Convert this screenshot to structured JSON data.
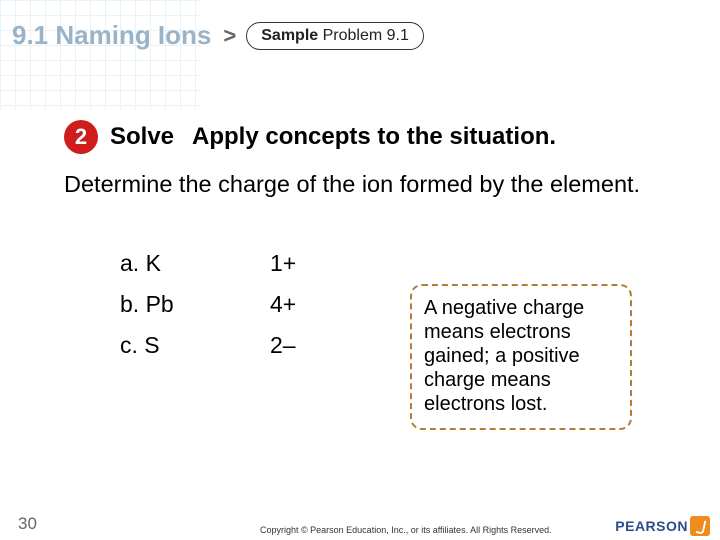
{
  "header": {
    "section_title": "9.1 Naming Ions",
    "chevron": ">",
    "sample_bold": "Sample",
    "sample_rest": " Problem 9.1"
  },
  "step": {
    "number": "2",
    "label": "Solve",
    "text": "Apply concepts to the situation."
  },
  "instruction": "Determine the charge of the ion formed by the element.",
  "answers": [
    {
      "el": "a. K",
      "ch": "1+"
    },
    {
      "el": "b. Pb",
      "ch": "4+"
    },
    {
      "el": "c. S",
      "ch": "2–"
    }
  ],
  "hint": "A negative charge means electrons gained; a positive charge means electrons lost.",
  "footer": {
    "page": "30",
    "copyright": "Copyright © Pearson Education, Inc., or its affiliates. All Rights Reserved.",
    "logo_text": "PEARSON"
  },
  "colors": {
    "title": "#9ab3c7",
    "circle": "#cf1d1d",
    "hint_border": "#b77b39",
    "logo_text": "#2a4e8a",
    "logo_mark": "#f08b1d"
  }
}
